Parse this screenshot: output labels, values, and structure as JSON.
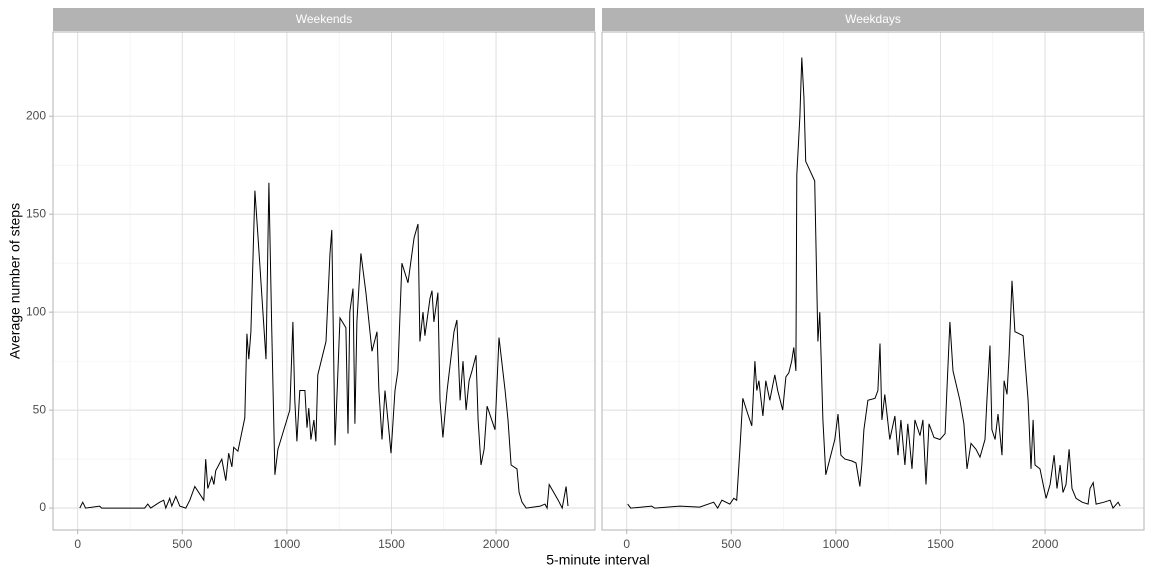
{
  "chart_data": {
    "type": "line",
    "x_label": "5-minute interval",
    "y_label": "Average number of steps",
    "xlim": [
      -118,
      2473
    ],
    "ylim": [
      -11.2,
      243
    ],
    "xticks": [
      0,
      500,
      1000,
      1500,
      2000
    ],
    "yticks": [
      0,
      50,
      100,
      150,
      200
    ],
    "grid": true,
    "minor_grid": true,
    "color": "#000000",
    "panels": [
      {
        "title": "Weekends",
        "x": [
          10,
          24,
          38,
          105,
          115,
          320,
          335,
          349,
          392,
          411,
          421,
          440,
          450,
          469,
          488,
          517,
          536,
          560,
          603,
          612,
          622,
          641,
          651,
          660,
          689,
          708,
          722,
          737,
          746,
          766,
          799,
          809,
          818,
          828,
          847,
          861,
          900,
          914,
          928,
          943,
          957,
          1014,
          1029,
          1038,
          1048,
          1062,
          1086,
          1096,
          1105,
          1115,
          1129,
          1139,
          1148,
          1187,
          1206,
          1215,
          1230,
          1254,
          1282,
          1292,
          1301,
          1316,
          1325,
          1335,
          1354,
          1378,
          1407,
          1431,
          1440,
          1455,
          1469,
          1483,
          1498,
          1517,
          1531,
          1550,
          1579,
          1608,
          1627,
          1636,
          1651,
          1660,
          1684,
          1694,
          1703,
          1722,
          1732,
          1746,
          1766,
          1799,
          1813,
          1828,
          1842,
          1857,
          1871,
          1885,
          1904,
          1914,
          1928,
          1943,
          1957,
          1995,
          2014,
          2043,
          2057,
          2072,
          2100,
          2110,
          2124,
          2144,
          2211,
          2234,
          2244,
          2254,
          2297,
          2316,
          2335,
          2344
        ],
        "values": [
          0,
          3,
          0,
          1,
          0,
          0,
          2,
          0,
          3,
          4,
          0,
          5,
          1,
          6,
          1,
          0,
          4,
          11,
          4,
          25,
          10,
          16,
          12,
          19,
          25,
          14,
          28,
          21,
          31,
          29,
          46,
          89,
          76,
          90,
          162,
          140,
          76,
          166,
          90,
          17,
          30,
          50,
          95,
          55,
          34,
          60,
          60,
          41,
          51,
          35,
          45,
          34,
          68,
          85,
          130,
          142,
          32,
          97,
          92,
          38,
          100,
          112,
          43,
          95,
          130,
          110,
          80,
          90,
          60,
          35,
          60,
          45,
          28,
          60,
          70,
          125,
          115,
          138,
          145,
          85,
          100,
          88,
          107,
          111,
          95,
          110,
          55,
          36,
          60,
          90,
          96,
          55,
          75,
          50,
          65,
          70,
          78,
          45,
          22,
          30,
          52,
          40,
          87,
          60,
          45,
          22,
          20,
          8,
          3,
          0,
          1,
          2,
          0,
          12,
          4,
          0,
          11,
          1
        ]
      },
      {
        "title": "Weekdays",
        "x": [
          5,
          19,
          120,
          134,
          254,
          349,
          416,
          435,
          455,
          493,
          512,
          526,
          541,
          555,
          579,
          598,
          613,
          622,
          632,
          651,
          665,
          684,
          708,
          722,
          746,
          761,
          775,
          789,
          799,
          809,
          813,
          828,
          837,
          847,
          856,
          899,
          914,
          923,
          938,
          952,
          971,
          995,
          1010,
          1024,
          1043,
          1077,
          1096,
          1115,
          1124,
          1134,
          1153,
          1187,
          1201,
          1211,
          1220,
          1234,
          1258,
          1282,
          1297,
          1311,
          1330,
          1344,
          1364,
          1378,
          1402,
          1416,
          1431,
          1445,
          1469,
          1498,
          1522,
          1531,
          1545,
          1560,
          1593,
          1612,
          1627,
          1646,
          1670,
          1689,
          1713,
          1722,
          1737,
          1746,
          1761,
          1775,
          1794,
          1804,
          1818,
          1828,
          1842,
          1856,
          1895,
          1919,
          1933,
          1943,
          1952,
          1976,
          1995,
          2005,
          2024,
          2043,
          2057,
          2072,
          2086,
          2100,
          2115,
          2129,
          2148,
          2177,
          2206,
          2215,
          2230,
          2244,
          2282,
          2311,
          2325,
          2349,
          2359
        ],
        "values": [
          2,
          0,
          1,
          0,
          1,
          0.5,
          3,
          0,
          4,
          2,
          5,
          4,
          30,
          56,
          48,
          42,
          75,
          60,
          65,
          47,
          65,
          55,
          68,
          60,
          50,
          67,
          69,
          75,
          82,
          70,
          170,
          200,
          230,
          210,
          177,
          167,
          85,
          100,
          45,
          17,
          25,
          35,
          48,
          27,
          25,
          24,
          23,
          11,
          22,
          40,
          55,
          56,
          60,
          84,
          45,
          58,
          35,
          47,
          27,
          45,
          22,
          43,
          20,
          45,
          37,
          45,
          12,
          43,
          36,
          35,
          38,
          60,
          95,
          70,
          55,
          43,
          20,
          33,
          30,
          26,
          35,
          55,
          83,
          40,
          35,
          48,
          27,
          65,
          58,
          78,
          116,
          90,
          88,
          55,
          20,
          45,
          22,
          20,
          10,
          5,
          12,
          27,
          10,
          22,
          8,
          12,
          30,
          10,
          5,
          3,
          2,
          10,
          13,
          2,
          3,
          4,
          0,
          3,
          1
        ]
      }
    ]
  }
}
